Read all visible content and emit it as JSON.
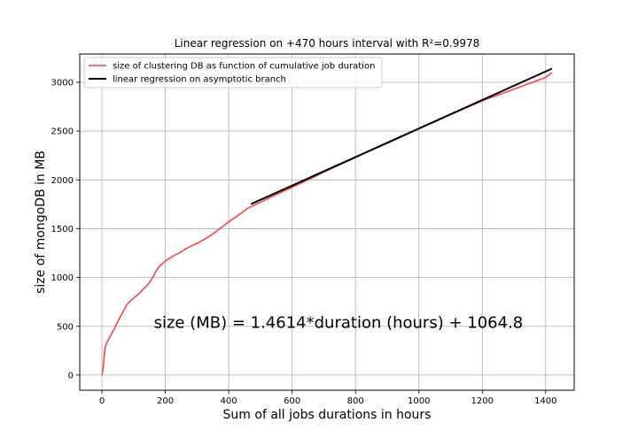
{
  "chart_data": {
    "type": "line",
    "title": "Linear regression on +470 hours interval with R²=0.9978",
    "xlabel": "Sum of all jobs durations in hours",
    "ylabel": "size of mongoDB in MB",
    "xlim": [
      -70,
      1490
    ],
    "ylim": [
      -155,
      3290
    ],
    "xticks": [
      0,
      200,
      400,
      600,
      800,
      1000,
      1200,
      1400
    ],
    "yticks": [
      0,
      500,
      1000,
      1500,
      2000,
      2500,
      3000
    ],
    "grid": true,
    "legend_position": "upper-left",
    "annotation": {
      "text": "size (MB) = 1.4614*duration (hours) + 1064.8",
      "x": 200,
      "y": 540
    },
    "series": [
      {
        "name": "size of clustering DB as function of cumulative job duration",
        "color": "#ff4444",
        "x": [
          0,
          3,
          6,
          10,
          15,
          20,
          25,
          30,
          40,
          50,
          60,
          70,
          80,
          90,
          100,
          110,
          120,
          130,
          140,
          150,
          160,
          170,
          180,
          190,
          200,
          210,
          220,
          230,
          240,
          250,
          260,
          280,
          300,
          320,
          340,
          360,
          380,
          400,
          420,
          440,
          460,
          480,
          500,
          550,
          600,
          650,
          700,
          750,
          800,
          850,
          900,
          950,
          1000,
          1050,
          1100,
          1150,
          1200,
          1250,
          1300,
          1350,
          1400,
          1420
        ],
        "y": [
          0,
          50,
          150,
          280,
          330,
          360,
          390,
          420,
          480,
          550,
          610,
          670,
          730,
          760,
          790,
          815,
          845,
          880,
          910,
          950,
          1000,
          1060,
          1110,
          1140,
          1170,
          1190,
          1210,
          1230,
          1245,
          1265,
          1285,
          1320,
          1350,
          1385,
          1425,
          1470,
          1520,
          1570,
          1615,
          1660,
          1710,
          1740,
          1770,
          1850,
          1925,
          2000,
          2080,
          2155,
          2230,
          2305,
          2375,
          2450,
          2525,
          2595,
          2670,
          2740,
          2810,
          2870,
          2930,
          2990,
          3050,
          3100
        ]
      },
      {
        "name": "linear regression on asymptotic branch",
        "color": "#000000",
        "x": [
          470,
          1420
        ],
        "y": [
          1751.7,
          3140.0
        ]
      }
    ]
  }
}
